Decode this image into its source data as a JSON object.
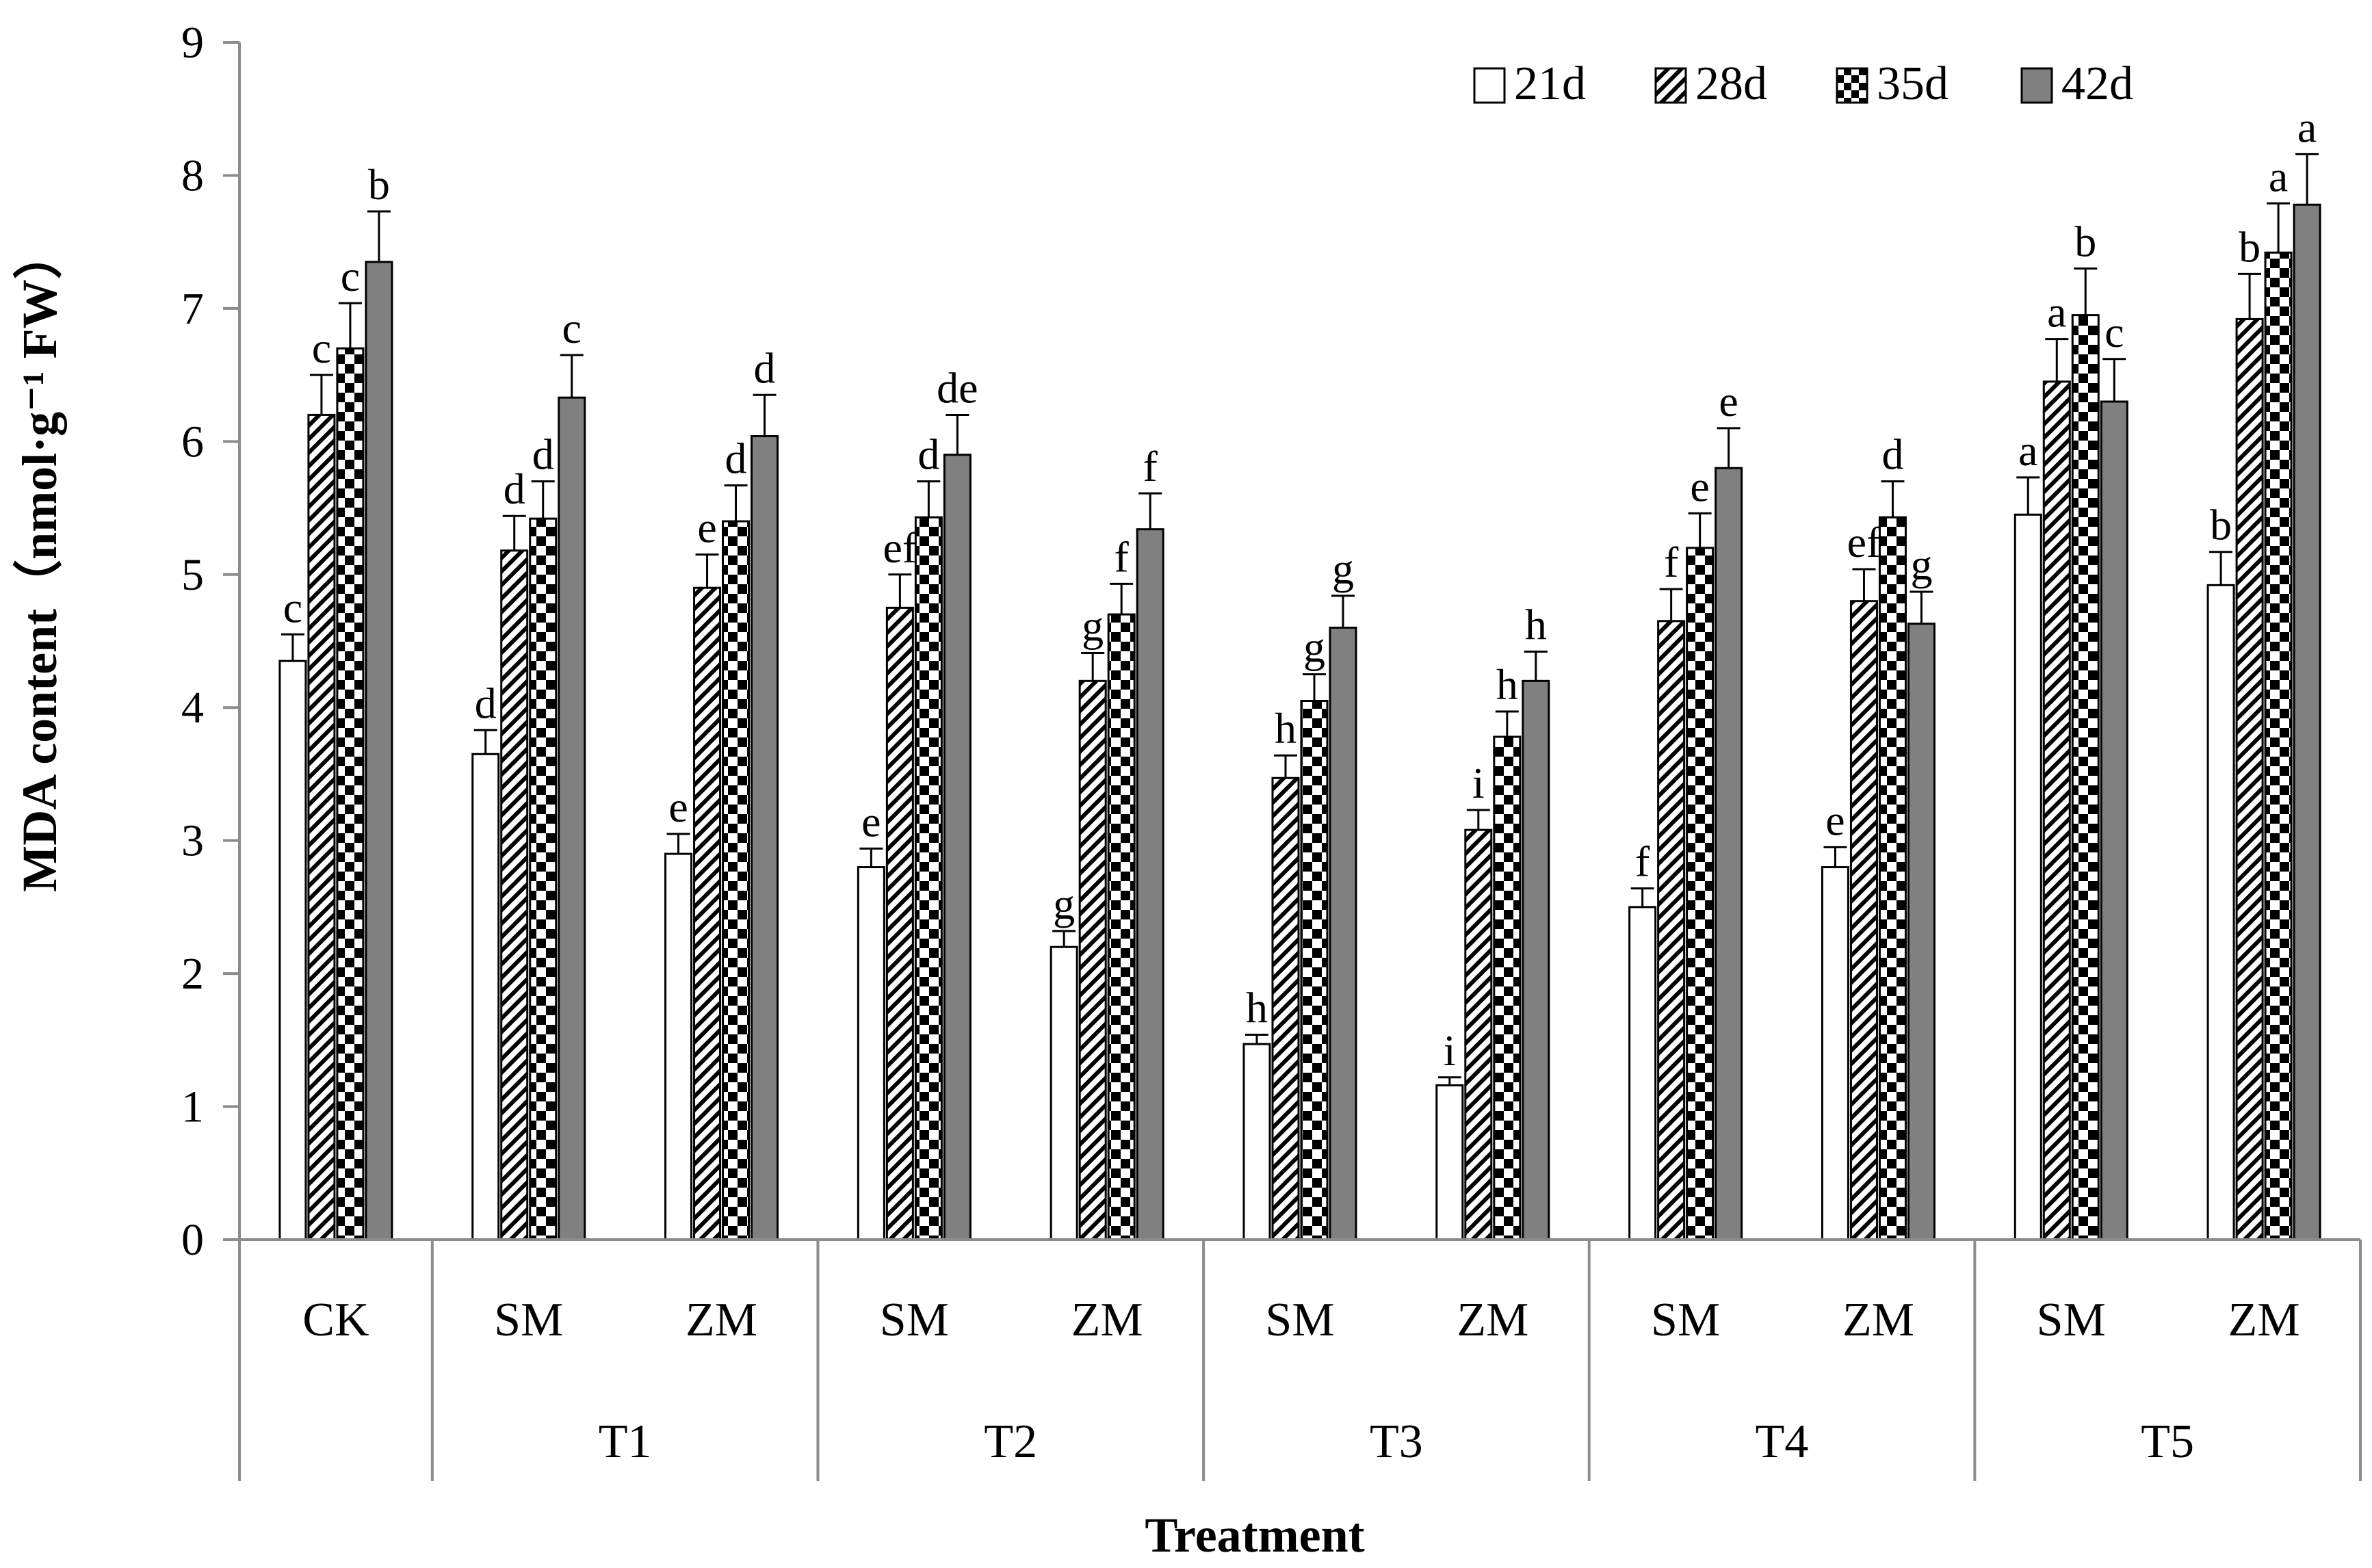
{
  "chart_data": {
    "type": "bar",
    "title": "",
    "xlabel": "Treatment",
    "ylabel": "MDA content（nmol·g⁻¹ FW）",
    "ylim": [
      0,
      9
    ],
    "yticks": [
      "0",
      "1",
      "2",
      "3",
      "4",
      "5",
      "6",
      "7",
      "8",
      "9"
    ],
    "legend_position": "top-right",
    "categories": [
      "CK",
      "SM",
      "ZM",
      "SM",
      "ZM",
      "SM",
      "ZM",
      "SM",
      "ZM",
      "SM",
      "ZM"
    ],
    "groups": [
      {
        "label": "",
        "span": [
          0,
          0
        ]
      },
      {
        "label": "T1",
        "span": [
          1,
          2
        ]
      },
      {
        "label": "T2",
        "span": [
          3,
          4
        ]
      },
      {
        "label": "T3",
        "span": [
          5,
          6
        ]
      },
      {
        "label": "T4",
        "span": [
          7,
          8
        ]
      },
      {
        "label": "T5",
        "span": [
          9,
          10
        ]
      }
    ],
    "series": [
      {
        "name": "21d",
        "pattern": "white",
        "values": [
          4.35,
          3.65,
          2.9,
          2.8,
          2.2,
          1.47,
          1.16,
          2.5,
          2.8,
          5.45,
          4.92
        ],
        "errors": [
          0.2,
          0.18,
          0.15,
          0.14,
          0.12,
          0.07,
          0.06,
          0.14,
          0.15,
          0.28,
          0.25
        ],
        "letters": [
          "c",
          "d",
          "e",
          "e",
          "g",
          "h",
          "i",
          "f",
          "e",
          "a",
          "b"
        ]
      },
      {
        "name": "28d",
        "pattern": "diagonal",
        "values": [
          6.2,
          5.18,
          4.9,
          4.75,
          4.2,
          3.47,
          3.08,
          4.65,
          4.8,
          6.45,
          6.92
        ],
        "errors": [
          0.3,
          0.26,
          0.25,
          0.25,
          0.21,
          0.17,
          0.15,
          0.24,
          0.24,
          0.32,
          0.34
        ],
        "letters": [
          "c",
          "d",
          "e",
          "ef",
          "g",
          "h",
          "i",
          "f",
          "ef",
          "a",
          "b"
        ]
      },
      {
        "name": "35d",
        "pattern": "checker",
        "values": [
          6.7,
          5.42,
          5.4,
          5.43,
          4.7,
          4.05,
          3.78,
          5.2,
          5.43,
          6.95,
          7.42
        ],
        "errors": [
          0.34,
          0.28,
          0.27,
          0.27,
          0.23,
          0.2,
          0.19,
          0.26,
          0.27,
          0.35,
          0.37
        ],
        "letters": [
          "c",
          "d",
          "d",
          "d",
          "f",
          "g",
          "h",
          "e",
          "d",
          "b",
          "a"
        ]
      },
      {
        "name": "42d",
        "pattern": "gray",
        "values": [
          7.35,
          6.33,
          6.04,
          5.9,
          5.34,
          4.6,
          4.2,
          5.8,
          4.63,
          6.3,
          7.78
        ],
        "errors": [
          0.38,
          0.32,
          0.31,
          0.3,
          0.27,
          0.24,
          0.22,
          0.3,
          0.24,
          0.32,
          0.38
        ],
        "letters": [
          "b",
          "c",
          "d",
          "de",
          "f",
          "g",
          "h",
          "e",
          "g",
          "c",
          "a"
        ]
      }
    ]
  }
}
